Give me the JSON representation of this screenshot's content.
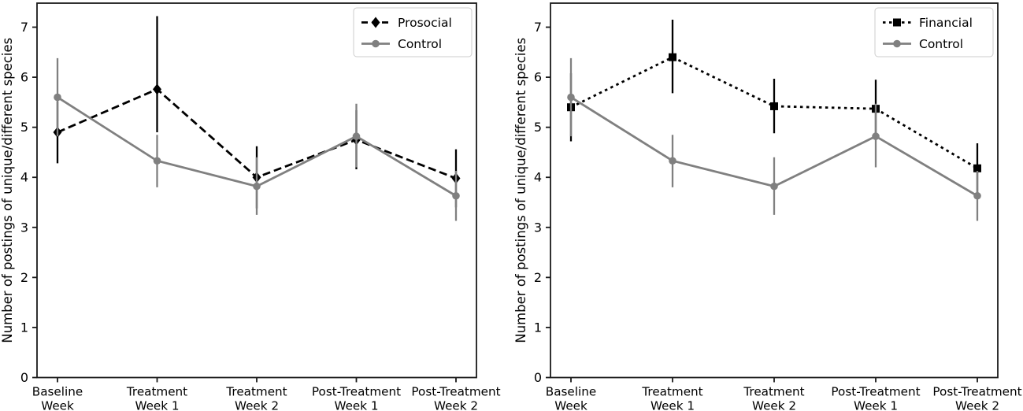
{
  "chart_data": [
    {
      "type": "line",
      "title": "",
      "xlabel": "",
      "ylabel": "Number of postings of unique/different species",
      "ylim": [
        0,
        7.48
      ],
      "yticks": [
        0,
        1,
        2,
        3,
        4,
        5,
        6,
        7
      ],
      "grid": false,
      "legend_position": "upper right",
      "categories": [
        "Baseline\nWeek",
        "Treatment\nWeek 1",
        "Treatment\nWeek 2",
        "Post-Treatment\nWeek 1",
        "Post-Treatment\nWeek 2"
      ],
      "series": [
        {
          "name": "Prosocial",
          "color": "#000000",
          "line_style": "dashed",
          "marker": "diamond",
          "values": [
            4.9,
            5.76,
            4.0,
            4.75,
            3.98
          ],
          "err_lo": [
            4.28,
            4.9,
            3.38,
            4.16,
            3.4
          ],
          "err_hi": [
            5.52,
            7.22,
            4.62,
            5.34,
            4.56
          ]
        },
        {
          "name": "Control",
          "color": "#808080",
          "line_style": "solid",
          "marker": "circle",
          "values": [
            5.6,
            4.33,
            3.82,
            4.82,
            3.63
          ],
          "err_lo": [
            4.82,
            3.8,
            3.25,
            4.2,
            3.13
          ],
          "err_hi": [
            6.38,
            4.85,
            4.4,
            5.47,
            4.13
          ]
        }
      ]
    },
    {
      "type": "line",
      "title": "",
      "xlabel": "",
      "ylabel": "Number of postings of unique/different species",
      "ylim": [
        0,
        7.48
      ],
      "yticks": [
        0,
        1,
        2,
        3,
        4,
        5,
        6,
        7
      ],
      "grid": false,
      "legend_position": "upper right",
      "categories": [
        "Baseline\nWeek",
        "Treatment\nWeek 1",
        "Treatment\nWeek 2",
        "Post-Treatment\nWeek 1",
        "Post-Treatment\nWeek 2"
      ],
      "series": [
        {
          "name": "Financial",
          "color": "#000000",
          "line_style": "dotted",
          "marker": "square",
          "values": [
            5.4,
            6.4,
            5.42,
            5.37,
            4.18
          ],
          "err_lo": [
            4.72,
            5.68,
            4.88,
            4.78,
            3.68
          ],
          "err_hi": [
            6.08,
            7.15,
            5.97,
            5.95,
            4.68
          ]
        },
        {
          "name": "Control",
          "color": "#808080",
          "line_style": "solid",
          "marker": "circle",
          "values": [
            5.6,
            4.33,
            3.82,
            4.82,
            3.63
          ],
          "err_lo": [
            4.82,
            3.8,
            3.25,
            4.2,
            3.13
          ],
          "err_hi": [
            6.38,
            4.85,
            4.4,
            5.47,
            4.13
          ]
        }
      ]
    }
  ],
  "style": {
    "spine_color": "#1a1a1a",
    "text_color": "#000000",
    "legend_border": "#cccccc",
    "legend_bg": "#ffffff"
  }
}
